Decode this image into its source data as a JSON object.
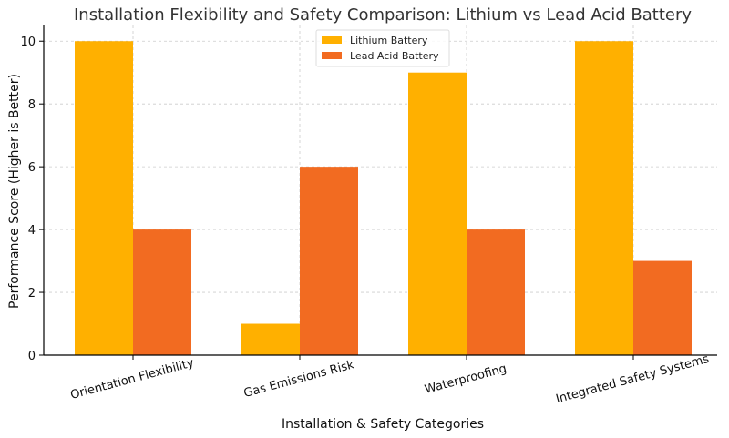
{
  "chart_data": {
    "type": "bar",
    "title": "Installation Flexibility and Safety Comparison: Lithium vs Lead Acid Battery",
    "xlabel": "Installation & Safety Categories",
    "ylabel": "Performance Score (Higher is Better)",
    "categories": [
      "Orientation Flexibility",
      "Gas Emissions Risk",
      "Waterproofing",
      "Integrated Safety Systems"
    ],
    "series": [
      {
        "name": "Lithium Battery",
        "color": "#FFB000",
        "values": [
          10,
          1,
          9,
          10
        ]
      },
      {
        "name": "Lead Acid Battery",
        "color": "#F26B21",
        "values": [
          4,
          6,
          4,
          3
        ]
      }
    ],
    "ylim": [
      0,
      10.5
    ],
    "yticks": [
      0,
      2,
      4,
      6,
      8,
      10
    ],
    "grid": true,
    "legend_position": "top-center"
  }
}
